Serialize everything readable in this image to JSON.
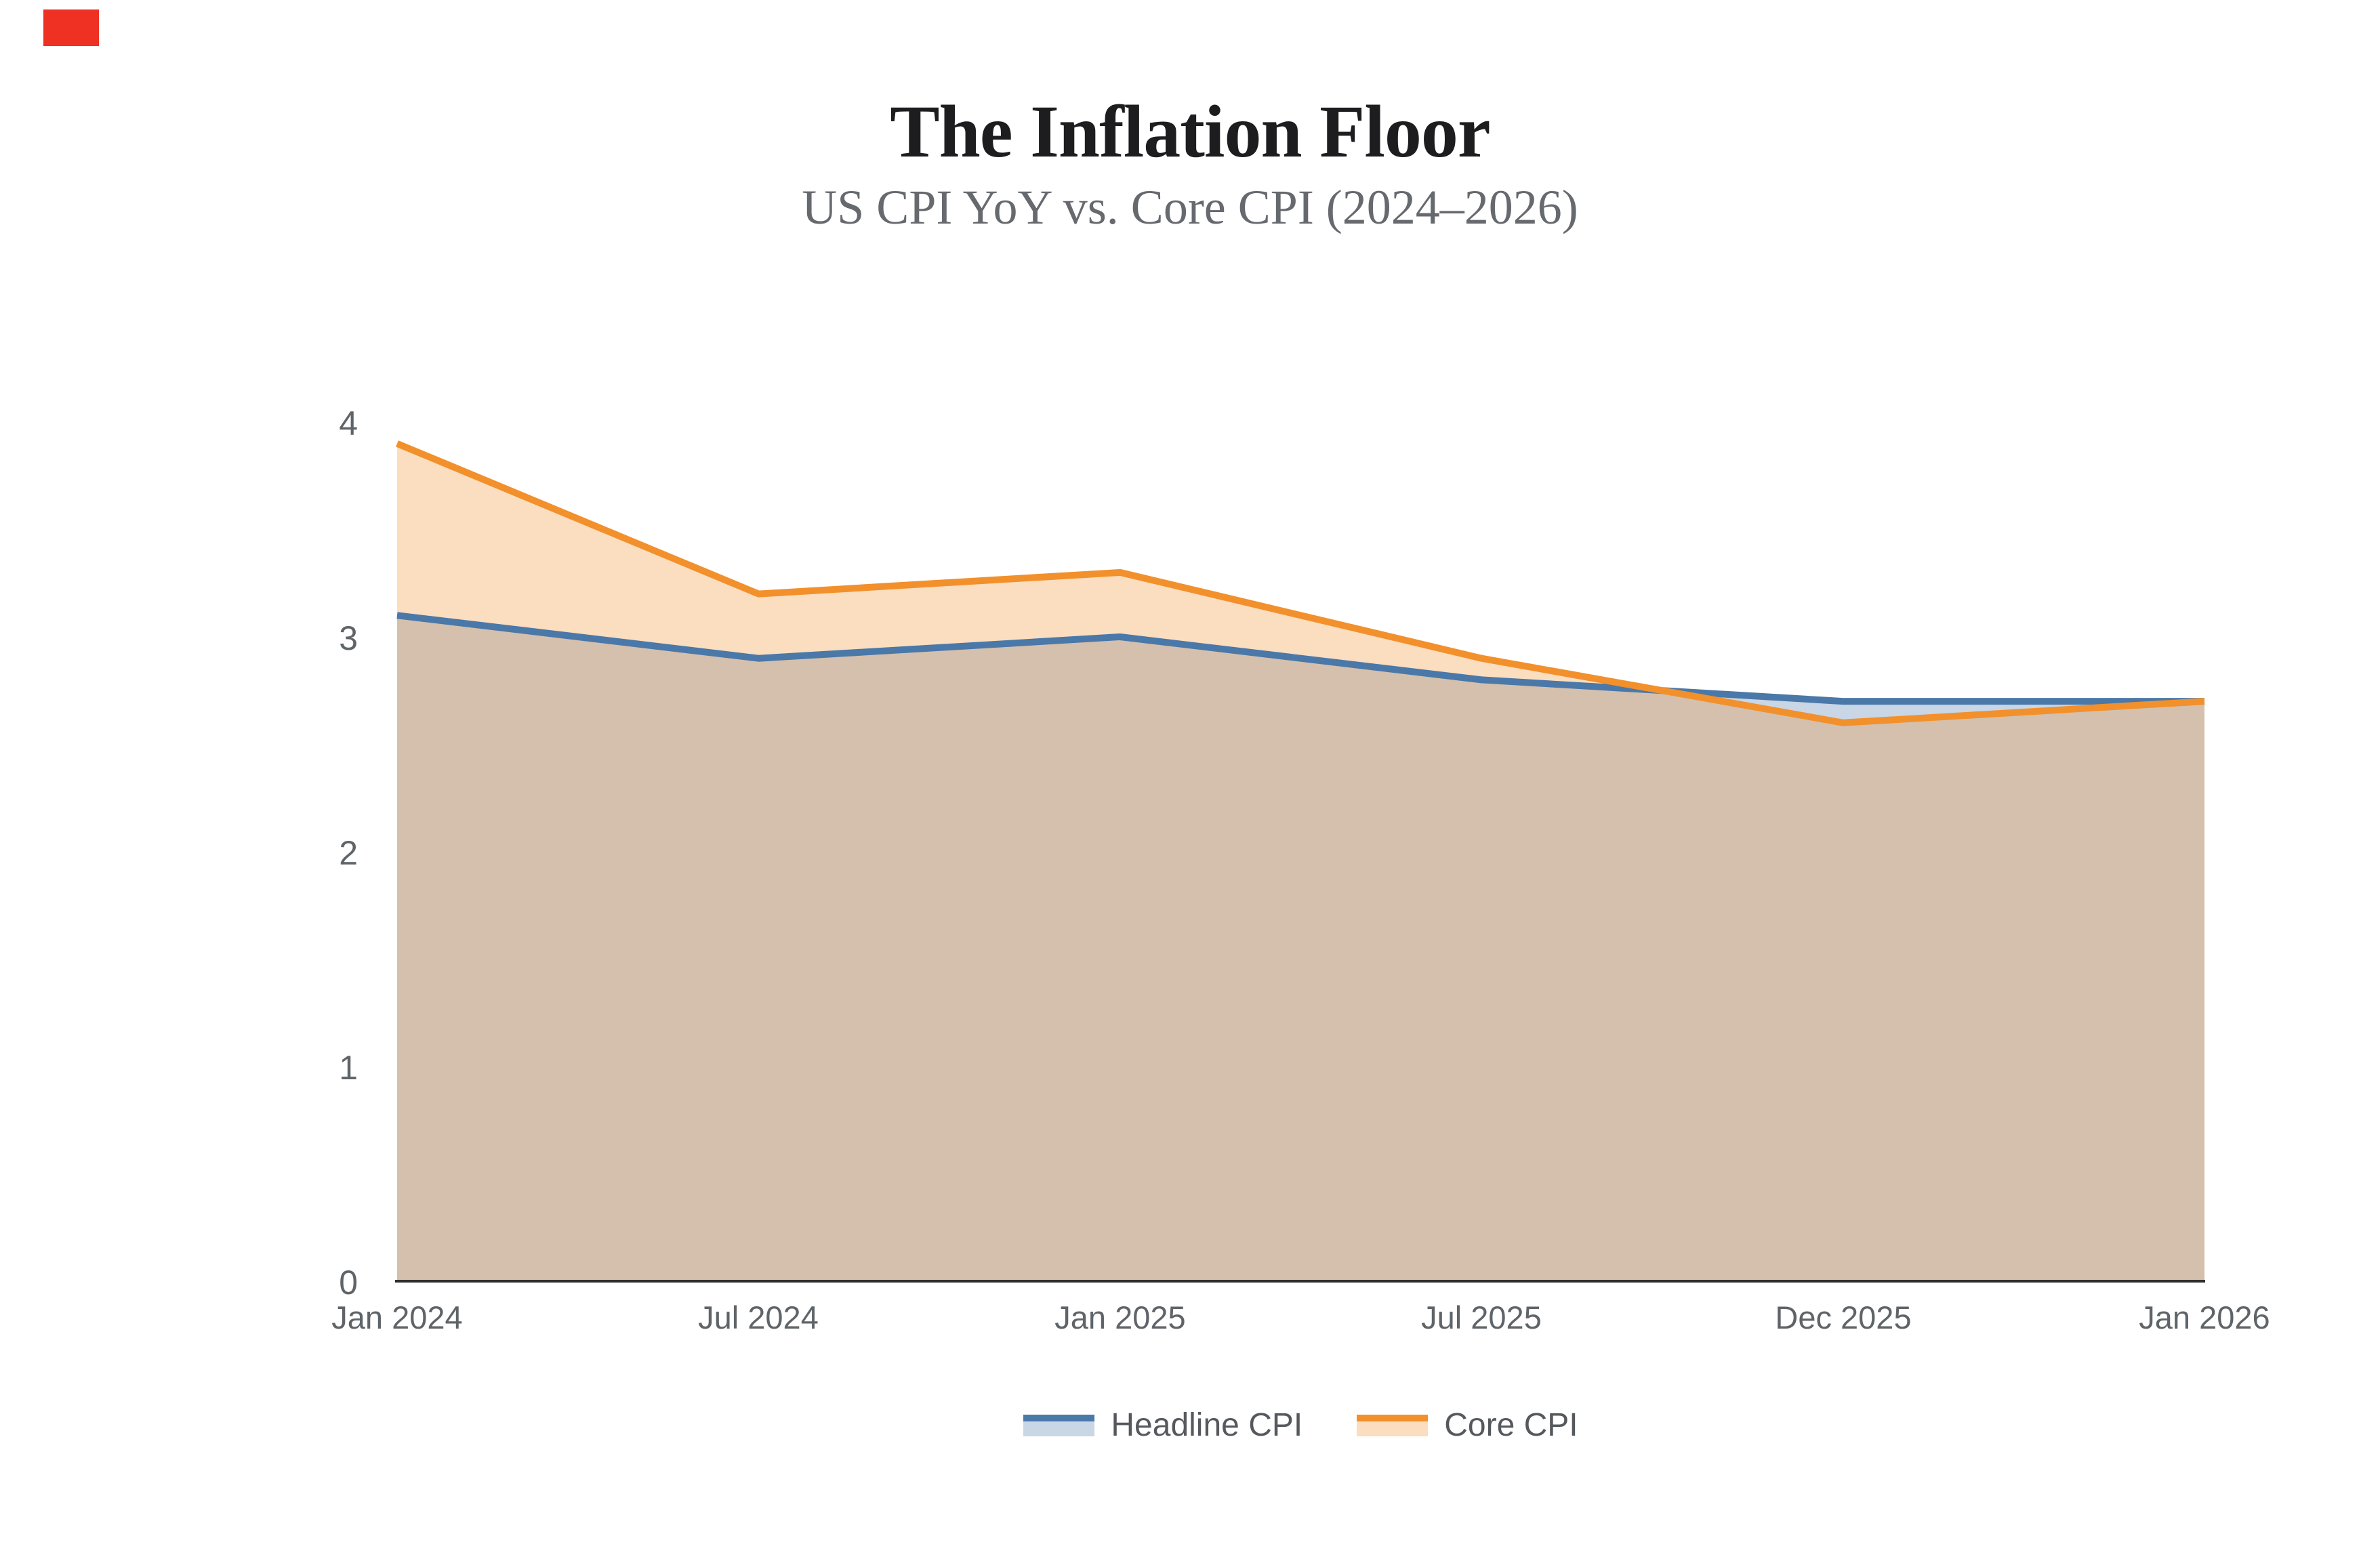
{
  "page": {
    "title": "The Inflation Floor",
    "subtitle": "US CPI YoY vs. Core CPI (2024–2026)"
  },
  "red_marker": {
    "color": "#ef3124"
  },
  "chart_data": {
    "type": "area",
    "title": "The Inflation Floor",
    "subtitle": "US CPI YoY vs. Core CPI (2024–2026)",
    "categories": [
      "Jan 2024",
      "Jul 2024",
      "Jan 2025",
      "Jul 2025",
      "Dec 2025",
      "Jan 2026"
    ],
    "series": [
      {
        "name": "Headline CPI",
        "values": [
          3.1,
          2.9,
          3.0,
          2.8,
          2.7,
          2.7
        ],
        "line_color": "#4a78a8",
        "fill_color": "rgba(74,120,168,0.30)"
      },
      {
        "name": "Core CPI",
        "values": [
          3.9,
          3.2,
          3.3,
          2.9,
          2.6,
          2.7
        ],
        "line_color": "#f2902c",
        "fill_color": "rgba(242,144,44,0.30)"
      }
    ],
    "xlabel": "",
    "ylabel": "",
    "ylim": [
      0,
      4
    ],
    "yticks": [
      0,
      1,
      2,
      3,
      4
    ],
    "grid": false,
    "legend_position": "bottom",
    "axis_line_color": "#2f2f2f",
    "tick_label_color": "#5f6468"
  }
}
